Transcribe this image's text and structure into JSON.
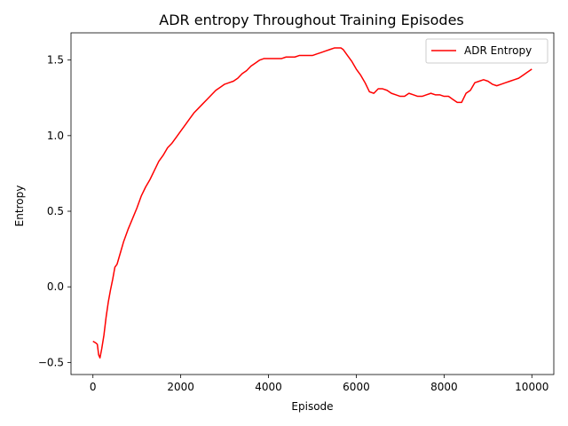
{
  "chart_data": {
    "type": "line",
    "title": "ADR entropy Throughout Training Episodes",
    "xlabel": "Episode",
    "ylabel": "Entropy",
    "xlim": [
      -500,
      10500
    ],
    "ylim": [
      -0.58,
      1.68
    ],
    "xticks": [
      0,
      2000,
      4000,
      6000,
      8000,
      10000
    ],
    "xtick_labels": [
      "0",
      "2000",
      "4000",
      "6000",
      "8000",
      "10000"
    ],
    "yticks": [
      -0.5,
      0.0,
      0.5,
      1.0,
      1.5
    ],
    "ytick_labels": [
      "−0.5",
      "0.0",
      "0.5",
      "1.0",
      "1.5"
    ],
    "grid": false,
    "legend_placement": "top-right",
    "series": [
      {
        "name": "ADR Entropy",
        "color": "#ff0000",
        "x": [
          0,
          60,
          100,
          130,
          160,
          200,
          250,
          300,
          350,
          400,
          450,
          500,
          550,
          600,
          650,
          700,
          800,
          900,
          1000,
          1100,
          1200,
          1300,
          1400,
          1500,
          1600,
          1700,
          1800,
          1900,
          2000,
          2100,
          2200,
          2300,
          2400,
          2500,
          2600,
          2700,
          2800,
          2900,
          3000,
          3100,
          3200,
          3300,
          3400,
          3500,
          3600,
          3700,
          3800,
          3900,
          4000,
          4100,
          4200,
          4300,
          4400,
          4500,
          4600,
          4700,
          4800,
          4900,
          5000,
          5100,
          5200,
          5300,
          5400,
          5500,
          5600,
          5650,
          5700,
          5800,
          5900,
          6000,
          6100,
          6200,
          6300,
          6400,
          6500,
          6600,
          6700,
          6800,
          6900,
          7000,
          7100,
          7200,
          7300,
          7400,
          7500,
          7600,
          7700,
          7800,
          7900,
          8000,
          8100,
          8200,
          8300,
          8400,
          8500,
          8600,
          8700,
          8800,
          8900,
          9000,
          9100,
          9200,
          9300,
          9400,
          9500,
          9600,
          9700,
          9800,
          9900,
          10000
        ],
        "y": [
          -0.36,
          -0.37,
          -0.38,
          -0.45,
          -0.47,
          -0.41,
          -0.32,
          -0.2,
          -0.1,
          -0.02,
          0.05,
          0.13,
          0.15,
          0.2,
          0.25,
          0.3,
          0.38,
          0.45,
          0.52,
          0.6,
          0.66,
          0.71,
          0.77,
          0.83,
          0.87,
          0.92,
          0.95,
          0.99,
          1.03,
          1.07,
          1.11,
          1.15,
          1.18,
          1.21,
          1.24,
          1.27,
          1.3,
          1.32,
          1.34,
          1.35,
          1.36,
          1.38,
          1.41,
          1.43,
          1.46,
          1.48,
          1.5,
          1.51,
          1.51,
          1.51,
          1.51,
          1.51,
          1.52,
          1.52,
          1.52,
          1.53,
          1.53,
          1.53,
          1.53,
          1.54,
          1.55,
          1.56,
          1.57,
          1.58,
          1.58,
          1.58,
          1.57,
          1.53,
          1.49,
          1.44,
          1.4,
          1.35,
          1.29,
          1.28,
          1.31,
          1.31,
          1.3,
          1.28,
          1.27,
          1.26,
          1.26,
          1.28,
          1.27,
          1.26,
          1.26,
          1.27,
          1.28,
          1.27,
          1.27,
          1.26,
          1.26,
          1.24,
          1.22,
          1.22,
          1.28,
          1.3,
          1.35,
          1.36,
          1.37,
          1.36,
          1.34,
          1.33,
          1.34,
          1.35,
          1.36,
          1.37,
          1.38,
          1.4,
          1.42,
          1.44
        ]
      }
    ]
  }
}
